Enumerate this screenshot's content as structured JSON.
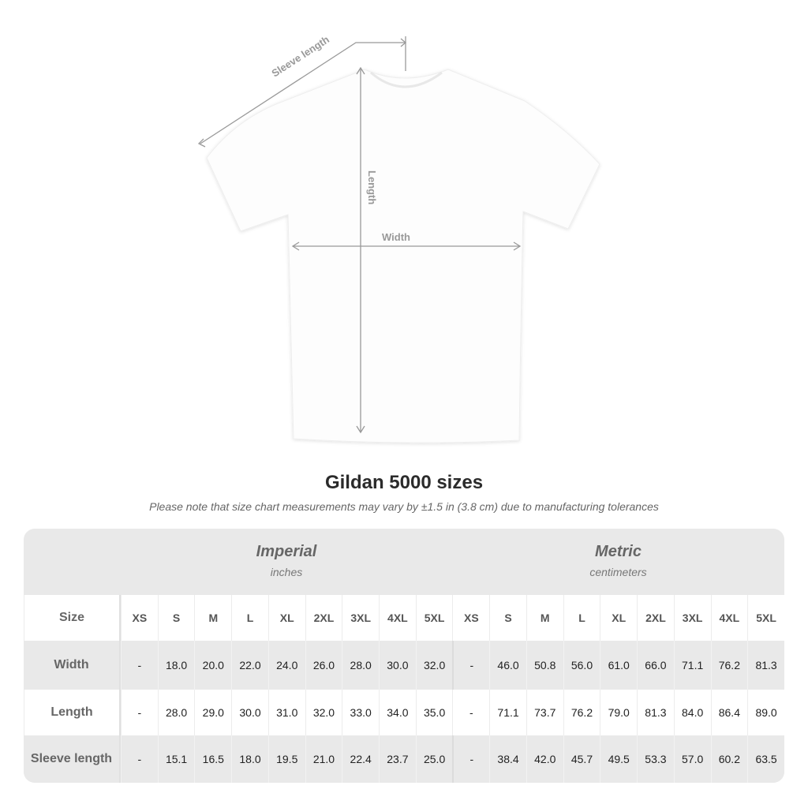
{
  "diagram": {
    "sleeve_label": "Sleeve length",
    "length_label": "Length",
    "width_label": "Width"
  },
  "title": "Gildan 5000 sizes",
  "note": "Please note that size chart measurements may vary by ±1.5 in (3.8 cm) due to manufacturing tolerances",
  "imperial": {
    "label": "Imperial",
    "unit": "inches"
  },
  "metric": {
    "label": "Metric",
    "unit": "centimeters"
  },
  "size_label": "Size",
  "sizes": [
    "XS",
    "S",
    "M",
    "L",
    "XL",
    "2XL",
    "3XL",
    "4XL",
    "5XL"
  ],
  "rows": [
    {
      "label": "Width",
      "imperial": [
        "-",
        "18.0",
        "20.0",
        "22.0",
        "24.0",
        "26.0",
        "28.0",
        "30.0",
        "32.0"
      ],
      "metric": [
        "-",
        "46.0",
        "50.8",
        "56.0",
        "61.0",
        "66.0",
        "71.1",
        "76.2",
        "81.3"
      ]
    },
    {
      "label": "Length",
      "imperial": [
        "-",
        "28.0",
        "29.0",
        "30.0",
        "31.0",
        "32.0",
        "33.0",
        "34.0",
        "35.0"
      ],
      "metric": [
        "-",
        "71.1",
        "73.7",
        "76.2",
        "79.0",
        "81.3",
        "84.0",
        "86.4",
        "89.0"
      ]
    },
    {
      "label": "Sleeve length",
      "imperial": [
        "-",
        "15.1",
        "16.5",
        "18.0",
        "19.5",
        "21.0",
        "22.4",
        "23.7",
        "25.0"
      ],
      "metric": [
        "-",
        "38.4",
        "42.0",
        "45.7",
        "49.5",
        "53.3",
        "57.0",
        "60.2",
        "63.5"
      ]
    }
  ]
}
